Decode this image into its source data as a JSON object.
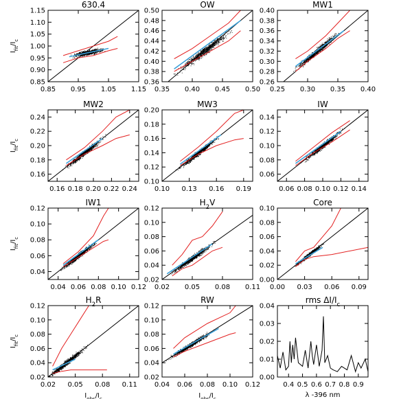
{
  "chart_data": [
    {
      "type": "scatter",
      "title": "630.4",
      "title_parts": [
        {
          "t": "630.4",
          "s": ""
        }
      ],
      "xlim": [
        0.85,
        1.15
      ],
      "ylim": [
        0.85,
        1.15
      ],
      "xticks": [
        "0.85",
        "0.95",
        "1.05",
        "1.15"
      ],
      "yticks": [
        "0.85",
        "0.90",
        "0.95",
        "1.00",
        "1.05",
        "1.10",
        "1.15"
      ],
      "ylabel": "I_fit/I_c",
      "cx": 0.98,
      "cy": 0.972,
      "spread": 0.03,
      "slope": 0.25,
      "ref_line": [
        [
          0.85,
          0.85
        ],
        [
          1.15,
          1.15
        ]
      ],
      "red_upper": [
        [
          0.9,
          0.96
        ],
        [
          0.95,
          0.98
        ],
        [
          1.0,
          1.0
        ],
        [
          1.05,
          1.02
        ],
        [
          1.08,
          1.04
        ]
      ],
      "red_lower": [
        [
          0.9,
          0.93
        ],
        [
          0.95,
          0.95
        ],
        [
          1.0,
          0.96
        ],
        [
          1.05,
          0.98
        ],
        [
          1.08,
          0.99
        ]
      ],
      "fit_line": [
        [
          0.92,
          0.955
        ],
        [
          1.05,
          0.99
        ]
      ]
    },
    {
      "type": "scatter",
      "title": "OW",
      "title_parts": [
        {
          "t": "OW",
          "s": ""
        }
      ],
      "xlim": [
        0.35,
        0.5
      ],
      "ylim": [
        0.36,
        0.5
      ],
      "xticks": [
        "0.35",
        "0.40",
        "0.45",
        "0.50"
      ],
      "yticks": [
        "0.36",
        "0.38",
        "0.40",
        "0.42",
        "0.44",
        "0.46",
        "0.48",
        "0.50"
      ],
      "ylabel": "",
      "cx": 0.42,
      "cy": 0.42,
      "spread": 0.025,
      "slope": 0.9,
      "ref_line": [
        [
          0.35,
          0.35
        ],
        [
          0.5,
          0.5
        ]
      ],
      "red_upper": [
        [
          0.37,
          0.405
        ],
        [
          0.4,
          0.425
        ],
        [
          0.43,
          0.45
        ],
        [
          0.46,
          0.475
        ],
        [
          0.48,
          0.5
        ]
      ],
      "red_lower": [
        [
          0.37,
          0.38
        ],
        [
          0.4,
          0.4
        ],
        [
          0.43,
          0.42
        ],
        [
          0.46,
          0.44
        ],
        [
          0.48,
          0.46
        ]
      ],
      "fit_line": [
        [
          0.37,
          0.385
        ],
        [
          0.48,
          0.48
        ]
      ]
    },
    {
      "type": "scatter",
      "title": "MW1",
      "title_parts": [
        {
          "t": "MW1",
          "s": ""
        }
      ],
      "xlim": [
        0.25,
        0.4
      ],
      "ylim": [
        0.26,
        0.4
      ],
      "xticks": [
        "0.25",
        "0.30",
        "0.35",
        "0.40"
      ],
      "yticks": [
        "0.26",
        "0.28",
        "0.30",
        "0.32",
        "0.34",
        "0.36",
        "0.38",
        "0.40"
      ],
      "ylabel": "",
      "cx": 0.315,
      "cy": 0.32,
      "spread": 0.02,
      "slope": 1.0,
      "ref_line": [
        [
          0.25,
          0.25
        ],
        [
          0.4,
          0.4
        ]
      ],
      "red_upper": [
        [
          0.28,
          0.305
        ],
        [
          0.3,
          0.32
        ],
        [
          0.33,
          0.35
        ],
        [
          0.35,
          0.375
        ],
        [
          0.37,
          0.4
        ]
      ],
      "red_lower": [
        [
          0.28,
          0.28
        ],
        [
          0.3,
          0.3
        ],
        [
          0.33,
          0.325
        ],
        [
          0.35,
          0.345
        ],
        [
          0.37,
          0.36
        ]
      ],
      "fit_line": [
        [
          0.28,
          0.29
        ],
        [
          0.36,
          0.36
        ]
      ]
    },
    {
      "type": "scatter",
      "title": "MW2",
      "title_parts": [
        {
          "t": "MW2",
          "s": ""
        }
      ],
      "xlim": [
        0.15,
        0.25
      ],
      "ylim": [
        0.15,
        0.25
      ],
      "xticks": [
        "0.16",
        "0.18",
        "0.20",
        "0.22",
        "0.24"
      ],
      "yticks": [
        "0.16",
        "0.18",
        "0.20",
        "0.22",
        "0.24"
      ],
      "ylabel": "I_fit/I_c",
      "cx": 0.19,
      "cy": 0.19,
      "spread": 0.012,
      "slope": 1.0,
      "ref_line": [
        [
          0.15,
          0.15
        ],
        [
          0.25,
          0.25
        ]
      ],
      "red_upper": [
        [
          0.17,
          0.18
        ],
        [
          0.19,
          0.197
        ],
        [
          0.21,
          0.22
        ],
        [
          0.225,
          0.24
        ],
        [
          0.24,
          0.25
        ]
      ],
      "red_lower": [
        [
          0.17,
          0.172
        ],
        [
          0.19,
          0.188
        ],
        [
          0.21,
          0.2
        ],
        [
          0.225,
          0.21
        ],
        [
          0.24,
          0.215
        ]
      ],
      "fit_line": [
        [
          0.17,
          0.175
        ],
        [
          0.21,
          0.21
        ]
      ]
    },
    {
      "type": "scatter",
      "title": "MW3",
      "title_parts": [
        {
          "t": "MW3",
          "s": ""
        }
      ],
      "xlim": [
        0.1,
        0.2
      ],
      "ylim": [
        0.1,
        0.2
      ],
      "xticks": [
        "0.10",
        "0.13",
        "0.16",
        "0.19"
      ],
      "yticks": [
        "0.10",
        "0.12",
        "0.14",
        "0.16",
        "0.18",
        "0.20"
      ],
      "ylabel": "",
      "cx": 0.14,
      "cy": 0.14,
      "spread": 0.012,
      "slope": 1.0,
      "ref_line": [
        [
          0.1,
          0.1
        ],
        [
          0.2,
          0.2
        ]
      ],
      "red_upper": [
        [
          0.12,
          0.128
        ],
        [
          0.14,
          0.148
        ],
        [
          0.16,
          0.17
        ],
        [
          0.18,
          0.195
        ],
        [
          0.19,
          0.2
        ]
      ],
      "red_lower": [
        [
          0.12,
          0.122
        ],
        [
          0.14,
          0.138
        ],
        [
          0.16,
          0.15
        ],
        [
          0.18,
          0.158
        ],
        [
          0.19,
          0.16
        ]
      ],
      "fit_line": [
        [
          0.12,
          0.124
        ],
        [
          0.165,
          0.165
        ]
      ]
    },
    {
      "type": "scatter",
      "title": "IW",
      "title_parts": [
        {
          "t": "IW",
          "s": ""
        }
      ],
      "xlim": [
        0.05,
        0.15
      ],
      "ylim": [
        0.05,
        0.15
      ],
      "xticks": [
        "0.06",
        "0.08",
        "0.10",
        "0.12",
        "0.14"
      ],
      "yticks": [
        "0.06",
        "0.08",
        "0.10",
        "0.12",
        "0.14"
      ],
      "ylabel": "",
      "cx": 0.1,
      "cy": 0.1,
      "spread": 0.012,
      "slope": 1.0,
      "ref_line": [
        [
          0.05,
          0.05
        ],
        [
          0.15,
          0.15
        ]
      ],
      "red_upper": [
        [
          0.07,
          0.078
        ],
        [
          0.09,
          0.098
        ],
        [
          0.11,
          0.118
        ],
        [
          0.13,
          0.135
        ]
      ],
      "red_lower": [
        [
          0.07,
          0.072
        ],
        [
          0.09,
          0.09
        ],
        [
          0.11,
          0.105
        ],
        [
          0.13,
          0.122
        ]
      ],
      "fit_line": [
        [
          0.07,
          0.075
        ],
        [
          0.12,
          0.12
        ]
      ]
    },
    {
      "type": "scatter",
      "title": "IW1",
      "title_parts": [
        {
          "t": "IW1",
          "s": ""
        }
      ],
      "xlim": [
        0.03,
        0.12
      ],
      "ylim": [
        0.03,
        0.12
      ],
      "xticks": [
        "0.04",
        "0.06",
        "0.08",
        "0.10",
        "0.12"
      ],
      "yticks": [
        "0.04",
        "0.06",
        "0.08",
        "0.10",
        "0.12"
      ],
      "ylabel": "I_fit/I_c",
      "cx": 0.06,
      "cy": 0.06,
      "spread": 0.01,
      "slope": 1.0,
      "ref_line": [
        [
          0.03,
          0.03
        ],
        [
          0.12,
          0.12
        ]
      ],
      "red_upper": [
        [
          0.045,
          0.05
        ],
        [
          0.06,
          0.065
        ],
        [
          0.075,
          0.085
        ],
        [
          0.085,
          0.11
        ],
        [
          0.09,
          0.12
        ]
      ],
      "red_lower": [
        [
          0.045,
          0.046
        ],
        [
          0.06,
          0.058
        ],
        [
          0.075,
          0.07
        ],
        [
          0.085,
          0.078
        ],
        [
          0.09,
          0.08
        ]
      ],
      "fit_line": [
        [
          0.045,
          0.048
        ],
        [
          0.08,
          0.08
        ]
      ]
    },
    {
      "type": "scatter",
      "title": "H2V",
      "title_parts": [
        {
          "t": "H",
          "s": ""
        },
        {
          "t": "2",
          "s": "sub"
        },
        {
          "t": "V",
          "s": ""
        }
      ],
      "xlim": [
        0.02,
        0.11
      ],
      "ylim": [
        0.02,
        0.12
      ],
      "xticks": [
        "0.02",
        "0.05",
        "0.08",
        "0.11"
      ],
      "yticks": [
        "0.02",
        "0.04",
        "0.06",
        "0.08",
        "0.10",
        "0.12"
      ],
      "ylabel": "",
      "cx": 0.05,
      "cy": 0.05,
      "spread": 0.012,
      "slope": 1.0,
      "ref_line": [
        [
          0.02,
          0.02
        ],
        [
          0.11,
          0.11
        ]
      ],
      "red_upper": [
        [
          0.03,
          0.04
        ],
        [
          0.04,
          0.055
        ],
        [
          0.05,
          0.075
        ],
        [
          0.06,
          0.08
        ],
        [
          0.07,
          0.095
        ],
        [
          0.08,
          0.115
        ]
      ],
      "red_lower": [
        [
          0.03,
          0.025
        ],
        [
          0.04,
          0.035
        ],
        [
          0.05,
          0.04
        ],
        [
          0.06,
          0.05
        ],
        [
          0.07,
          0.06
        ],
        [
          0.08,
          0.065
        ]
      ],
      "fit_line": [
        [
          0.025,
          0.028
        ],
        [
          0.07,
          0.07
        ]
      ]
    },
    {
      "type": "scatter",
      "title": "Core",
      "title_parts": [
        {
          "t": "Core",
          "s": ""
        }
      ],
      "xlim": [
        0.0,
        0.1
      ],
      "ylim": [
        0.0,
        0.1
      ],
      "xticks": [
        "0.00",
        "0.03",
        "0.06",
        "0.09"
      ],
      "yticks": [
        "0.00",
        "0.02",
        "0.04",
        "0.06",
        "0.08",
        "0.10"
      ],
      "ylabel": "",
      "cx": 0.035,
      "cy": 0.035,
      "spread": 0.008,
      "slope": 1.0,
      "ref_line": [
        [
          0.0,
          0.0
        ],
        [
          0.1,
          0.1
        ]
      ],
      "red_upper": [
        [
          0.02,
          0.025
        ],
        [
          0.03,
          0.04
        ],
        [
          0.04,
          0.045
        ],
        [
          0.06,
          0.075
        ],
        [
          0.07,
          0.1
        ]
      ],
      "red_lower": [
        [
          0.02,
          0.018
        ],
        [
          0.03,
          0.028
        ],
        [
          0.04,
          0.032
        ],
        [
          0.06,
          0.035
        ],
        [
          0.1,
          0.045
        ]
      ],
      "fit_line": [
        [
          0.02,
          0.022
        ],
        [
          0.05,
          0.045
        ]
      ]
    },
    {
      "type": "scatter",
      "title": "H2R",
      "title_parts": [
        {
          "t": "H",
          "s": ""
        },
        {
          "t": "2",
          "s": "sub"
        },
        {
          "t": "R",
          "s": ""
        }
      ],
      "xlim": [
        0.02,
        0.12
      ],
      "ylim": [
        0.02,
        0.12
      ],
      "xticks": [
        "0.02",
        "0.05",
        "0.08",
        "0.11"
      ],
      "yticks": [
        "0.02",
        "0.04",
        "0.06",
        "0.08",
        "0.10",
        "0.12"
      ],
      "ylabel": "I_fit/I_c",
      "xlabel": "I_obs/I_c",
      "cx": 0.04,
      "cy": 0.04,
      "spread": 0.012,
      "slope": 1.0,
      "ref_line": [
        [
          0.02,
          0.02
        ],
        [
          0.12,
          0.12
        ]
      ],
      "red_upper": [
        [
          0.025,
          0.035
        ],
        [
          0.035,
          0.06
        ],
        [
          0.045,
          0.08
        ],
        [
          0.055,
          0.1
        ],
        [
          0.065,
          0.12
        ]
      ],
      "red_lower": [
        [
          0.025,
          0.025
        ],
        [
          0.035,
          0.028
        ],
        [
          0.045,
          0.03
        ],
        [
          0.06,
          0.03
        ],
        [
          0.085,
          0.03
        ]
      ],
      "fit_line": [
        [
          0.025,
          0.03
        ],
        [
          0.05,
          0.045
        ]
      ]
    },
    {
      "type": "scatter",
      "title": "RW",
      "title_parts": [
        {
          "t": "RW",
          "s": ""
        }
      ],
      "xlim": [
        0.04,
        0.12
      ],
      "ylim": [
        0.02,
        0.12
      ],
      "xticks": [
        "0.04",
        "0.06",
        "0.08",
        "0.10",
        "0.12"
      ],
      "yticks": [
        "0.02",
        "0.04",
        "0.06",
        "0.08",
        "0.10",
        "0.12"
      ],
      "ylabel": "",
      "xlabel": "I_obs/I_c",
      "cx": 0.065,
      "cy": 0.065,
      "spread": 0.01,
      "slope": 1.0,
      "ref_line": [
        [
          0.04,
          0.04
        ],
        [
          0.12,
          0.12
        ]
      ],
      "red_upper": [
        [
          0.05,
          0.06
        ],
        [
          0.06,
          0.075
        ],
        [
          0.08,
          0.095
        ],
        [
          0.1,
          0.11
        ],
        [
          0.105,
          0.12
        ]
      ],
      "red_lower": [
        [
          0.05,
          0.048
        ],
        [
          0.06,
          0.056
        ],
        [
          0.08,
          0.068
        ],
        [
          0.1,
          0.08
        ],
        [
          0.105,
          0.082
        ]
      ],
      "fit_line": [
        [
          0.05,
          0.052
        ],
        [
          0.09,
          0.088
        ]
      ]
    },
    {
      "type": "line",
      "title": "rms ΔI/I_c",
      "title_parts": [
        {
          "t": "rms ΔI/I",
          "s": ""
        },
        {
          "t": "c",
          "s": "sub"
        }
      ],
      "xlim": [
        0.32,
        0.97
      ],
      "ylim": [
        0.0,
        0.04
      ],
      "xticks": [
        "0.4",
        "0.5",
        "0.6",
        "0.7",
        "0.8",
        "0.9"
      ],
      "yticks": [
        "0.00",
        "0.01",
        "0.02",
        "0.03",
        "0.04"
      ],
      "xlabel": "λ -396 nm",
      "x": [
        0.32,
        0.34,
        0.36,
        0.38,
        0.4,
        0.41,
        0.42,
        0.43,
        0.44,
        0.45,
        0.47,
        0.5,
        0.52,
        0.54,
        0.56,
        0.57,
        0.58,
        0.6,
        0.62,
        0.64,
        0.65,
        0.66,
        0.68,
        0.7,
        0.72,
        0.75,
        0.78,
        0.82,
        0.85,
        0.88,
        0.9,
        0.92,
        0.95,
        0.97
      ],
      "y": [
        0.012,
        0.005,
        0.014,
        0.004,
        0.006,
        0.02,
        0.008,
        0.018,
        0.01,
        0.022,
        0.008,
        0.006,
        0.015,
        0.005,
        0.02,
        0.012,
        0.007,
        0.018,
        0.006,
        0.015,
        0.034,
        0.008,
        0.012,
        0.005,
        0.004,
        0.003,
        0.006,
        0.004,
        0.012,
        0.003,
        0.008,
        0.005,
        0.01,
        0.003
      ]
    }
  ]
}
